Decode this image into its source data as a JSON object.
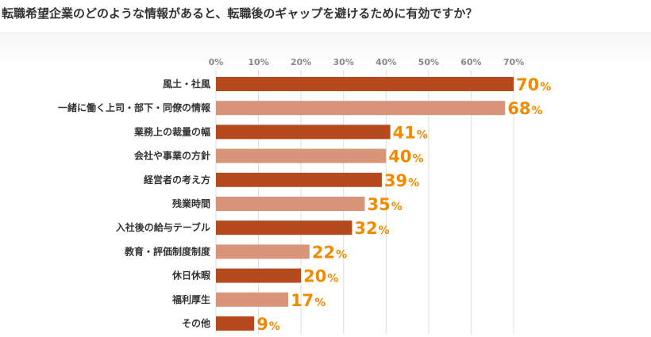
{
  "question": "転職希望企業のどのような情報があると、転職後のギャップを避けるために有効ですか？",
  "colors": {
    "bar_dark": "#b54a1e",
    "bar_light": "#d9957a",
    "value_label": "#f08a00"
  },
  "chart_data": {
    "type": "bar",
    "orientation": "horizontal",
    "title": "",
    "xlabel": "",
    "ylabel": "",
    "xlim": [
      0,
      70
    ],
    "x_ticks": [
      "0%",
      "10%",
      "20%",
      "30%",
      "40%",
      "50%",
      "60%",
      "70%"
    ],
    "grid": true,
    "categories": [
      "風土・社風",
      "一緒に働く上司・部下・同僚の情報",
      "業務上の裁量の幅",
      "会社や事業の方針",
      "経営者の考え方",
      "残業時間",
      "入社後の給与テーブル",
      "教育・評価制度制度",
      "休日休暇",
      "福利厚生",
      "その他"
    ],
    "values": [
      70,
      68,
      41,
      40,
      39,
      35,
      32,
      22,
      20,
      17,
      9
    ],
    "value_labels": [
      "70",
      "68",
      "41",
      "40",
      "39",
      "35",
      "32",
      "22",
      "20",
      "17",
      "9"
    ],
    "value_unit": "%"
  }
}
